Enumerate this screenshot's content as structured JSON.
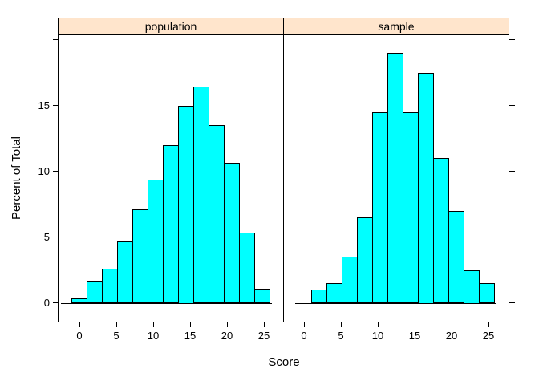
{
  "figure": {
    "background": "#FFFFFF",
    "text_color": "#000000"
  },
  "chart_data": {
    "type": "bar",
    "subtype": "histogram",
    "title": "",
    "xlabel": "Score",
    "ylabel": "Percent of Total",
    "grid": false,
    "legend": null,
    "xlim": [
      -2.8,
      27.8
    ],
    "ylim": [
      -1.5,
      20.4
    ],
    "x_ticks": [
      0,
      5,
      10,
      15,
      20,
      25
    ],
    "x_tick_labels": [
      "0",
      "5",
      "10",
      "15",
      "20",
      "25"
    ],
    "y_ticks": [
      0,
      5,
      10,
      15,
      20
    ],
    "y_tick_labels": [
      "0",
      "5",
      "10",
      "15",
      ""
    ],
    "bar_fill": "#00FFFF",
    "bar_border": "#000000",
    "strip_fill": "#FFE5CC",
    "panels": [
      {
        "title": "population",
        "bin_start": -1.1,
        "bin_width": 2.066,
        "values": [
          0.35,
          1.7,
          2.6,
          4.65,
          7.1,
          9.35,
          12.0,
          15.0,
          16.45,
          13.5,
          10.65,
          5.35,
          1.05
        ],
        "baseline_extent": [
          -2.5,
          26.1
        ]
      },
      {
        "title": "sample",
        "bin_start": 1.0,
        "bin_width": 2.066,
        "values": [
          1.0,
          1.5,
          3.5,
          6.5,
          14.5,
          19.0,
          14.5,
          17.5,
          11.0,
          7.0,
          2.5,
          1.5
        ],
        "baseline_extent": [
          -1.2,
          26.1
        ]
      }
    ]
  }
}
